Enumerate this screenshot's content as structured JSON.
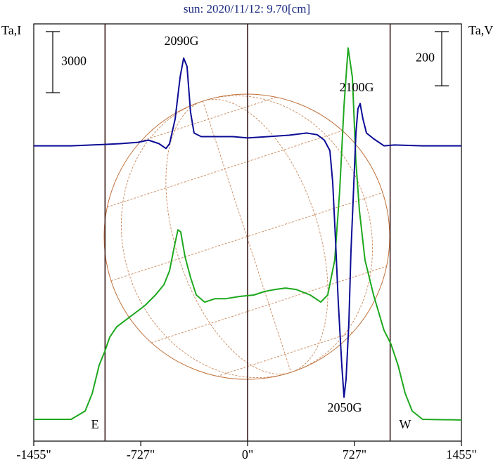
{
  "chart_data": {
    "type": "line",
    "title": "sun: 2020/11/12: 9.70[cm]",
    "ylabel": "Ta,I",
    "y2label": "Ta,V",
    "xlim": [
      -1455,
      1455
    ],
    "xticks": [
      {
        "value": -1455,
        "label": "-1455\""
      },
      {
        "value": -727,
        "label": "-727\""
      },
      {
        "value": 0,
        "label": "0\""
      },
      {
        "value": 727,
        "label": "727\""
      },
      {
        "value": 1455,
        "label": "1455\""
      }
    ],
    "ylim": [
      0,
      20500
    ],
    "y2lim": [
      -1090,
      450
    ],
    "vlines": [
      -970,
      0,
      970
    ],
    "scale_bars": [
      {
        "value": 3000,
        "axis": "y"
      },
      {
        "value": 200,
        "axis": "y2"
      }
    ],
    "annotations": [
      "2090G",
      "2100G",
      "2050G",
      "E",
      "W"
    ],
    "series": [
      {
        "color": "#1ea81e",
        "axis": "y",
        "x": [
          -1455,
          -1201,
          -1105,
          -1057,
          -1010,
          -971,
          -938,
          -890,
          -794,
          -699,
          -627,
          -569,
          -531,
          -498,
          -474,
          -455,
          -426,
          -388,
          -349,
          -292,
          -220,
          -148,
          -53,
          43,
          115,
          187,
          258,
          330,
          426,
          498,
          545,
          593,
          627,
          656,
          684,
          713,
          737,
          761,
          799,
          857,
          928,
          976,
          1024,
          1072,
          1120,
          1191,
          1455
        ],
        "values": [
          1070,
          1070,
          1480,
          2350,
          3730,
          4420,
          5110,
          5620,
          6140,
          6660,
          7180,
          7690,
          8380,
          9590,
          10380,
          10280,
          9070,
          8040,
          7180,
          6830,
          7000,
          7000,
          7110,
          7180,
          7350,
          7450,
          7520,
          7450,
          7180,
          6830,
          7180,
          8900,
          12350,
          16490,
          19320,
          17870,
          13730,
          11320,
          8900,
          7180,
          5450,
          4760,
          3730,
          2350,
          1480,
          1070,
          1040
        ]
      },
      {
        "color": "#0c0c96",
        "axis": "y2",
        "x": [
          -1455,
          -1201,
          -971,
          -866,
          -746,
          -675,
          -603,
          -555,
          -531,
          -493,
          -459,
          -435,
          -412,
          -388,
          -364,
          -316,
          -244,
          -100,
          0,
          139,
          282,
          402,
          474,
          522,
          560,
          579,
          598,
          617,
          641,
          656,
          670,
          689,
          703,
          723,
          737,
          751,
          766,
          785,
          809,
          857,
          928,
          1000,
          1191,
          1455
        ],
        "values": [
          0,
          0,
          5,
          8,
          13,
          21,
          8,
          -10,
          8,
          99,
          254,
          324,
          293,
          124,
          47,
          34,
          34,
          34,
          29,
          34,
          39,
          47,
          41,
          21,
          -18,
          -135,
          -342,
          -576,
          -809,
          -928,
          -861,
          -653,
          -394,
          -135,
          47,
          137,
          156,
          99,
          47,
          26,
          0,
          3,
          0,
          0
        ]
      }
    ]
  }
}
